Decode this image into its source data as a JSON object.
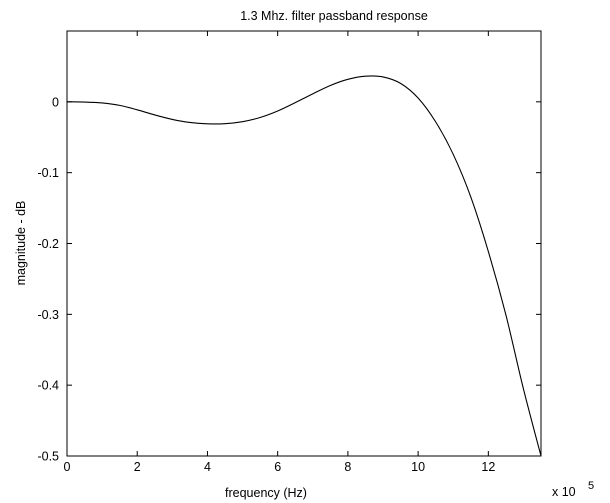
{
  "chart_data": {
    "type": "line",
    "title": "1.3 Mhz. filter passband response",
    "xlabel": "frequency (Hz)",
    "ylabel": "magnitude - dB",
    "x_multiplier_label": "x 10",
    "x_multiplier_exponent": "5",
    "xlim": [
      0,
      13.5
    ],
    "ylim": [
      -0.5,
      0.1
    ],
    "x_ticks": [
      0,
      2,
      4,
      6,
      8,
      10,
      12
    ],
    "y_ticks": [
      0,
      -0.1,
      -0.2,
      -0.3,
      -0.4,
      -0.5
    ],
    "y_tick_labels": [
      "0",
      "-0.1",
      "-0.2",
      "-0.3",
      "-0.4",
      "-0.5"
    ],
    "grid": false,
    "series": [
      {
        "color": "#000000",
        "x": [
          0,
          0.5,
          1,
          1.5,
          2,
          2.5,
          3,
          3.5,
          4,
          4.5,
          5,
          5.5,
          6,
          6.5,
          7,
          7.5,
          8,
          8.5,
          9,
          9.5,
          10,
          10.5,
          11,
          11.5,
          12,
          12.5,
          13,
          13.5
        ],
        "values": [
          0,
          -0.0003,
          -0.0016,
          -0.005,
          -0.0113,
          -0.0185,
          -0.0248,
          -0.0291,
          -0.031,
          -0.0308,
          -0.028,
          -0.0221,
          -0.0129,
          -0.0011,
          0.0113,
          0.0231,
          0.0318,
          0.0362,
          0.0352,
          0.0261,
          0.0054,
          -0.0283,
          -0.0741,
          -0.1343,
          -0.2113,
          -0.3008,
          -0.4053,
          -0.5
        ]
      }
    ]
  }
}
